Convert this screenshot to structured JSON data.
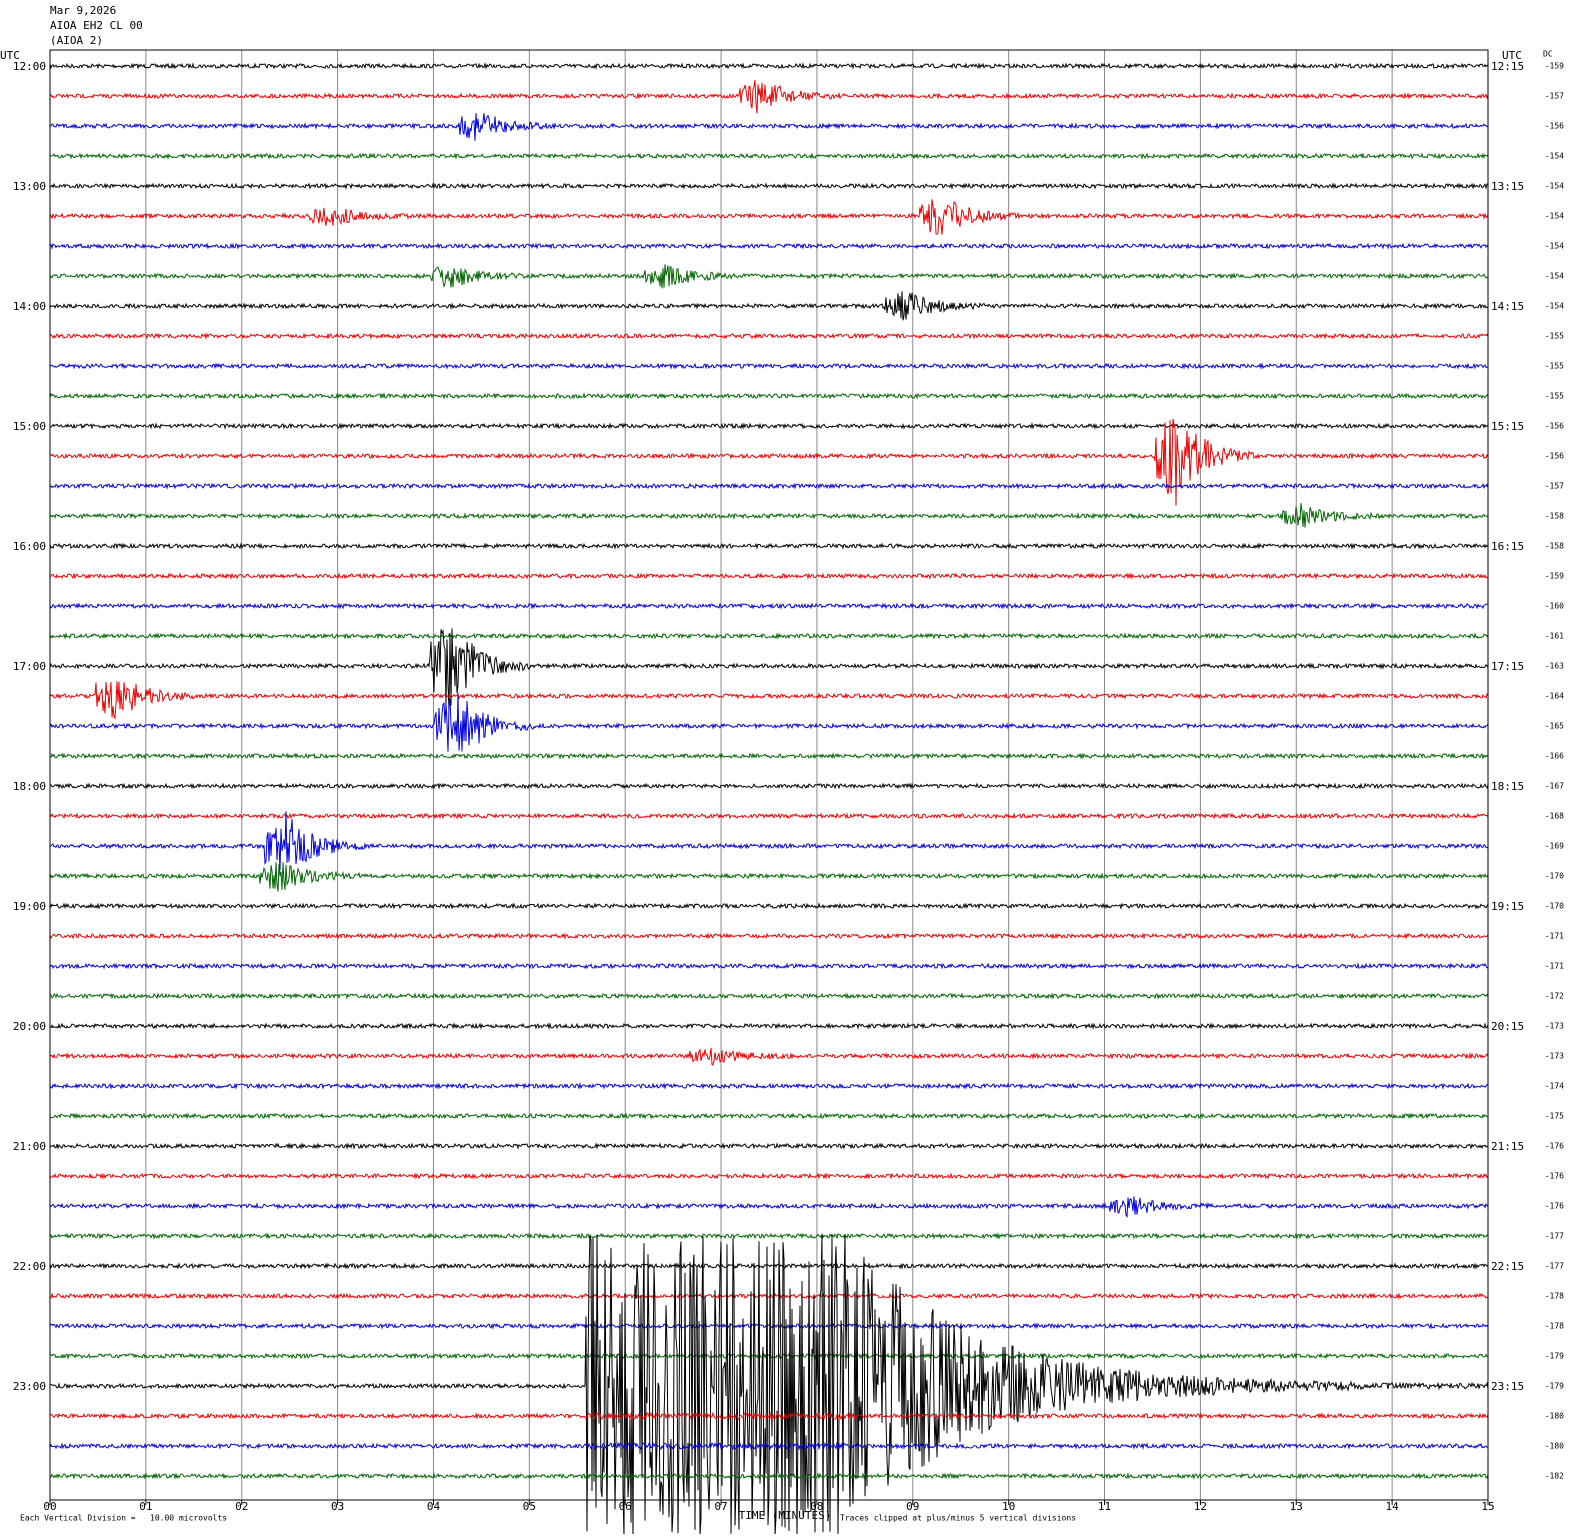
{
  "header": {
    "date": "Mar 9,2026",
    "station": "AIOA EH2 CL 00",
    "network": "(AIOA 2)"
  },
  "left_axis": {
    "label": "UTC",
    "times": [
      "12:00",
      "13:00",
      "14:00",
      "15:00",
      "16:00",
      "17:00",
      "18:00",
      "19:00",
      "20:00",
      "21:00",
      "22:00",
      "23:00"
    ]
  },
  "right_axis": {
    "label": "UTC",
    "times": [
      "12:15",
      "13:15",
      "14:15",
      "15:15",
      "16:15",
      "17:15",
      "18:15",
      "19:15",
      "20:15",
      "21:15",
      "22:15",
      "23:15"
    ]
  },
  "dc": {
    "label": "DC",
    "values": [
      "-159",
      "-157",
      "-156",
      "-154",
      "-154",
      "-154",
      "-154",
      "-154",
      "-154",
      "-155",
      "-155",
      "-155",
      "-156",
      "-156",
      "-157",
      "-158",
      "-158",
      "-159",
      "-160",
      "-161",
      "-163",
      "-164",
      "-165",
      "-166",
      "-167",
      "-168",
      "-169",
      "-170",
      "-170",
      "-171",
      "-171",
      "-172",
      "-173",
      "-173",
      "-174",
      "-175",
      "-176",
      "-176",
      "-176",
      "-177",
      "-177",
      "-178",
      "-178",
      "-179",
      "-179",
      "-180",
      "-180",
      "-182"
    ]
  },
  "x_axis": {
    "labels": [
      "00",
      "01",
      "02",
      "03",
      "04",
      "05",
      "06",
      "07",
      "08",
      "09",
      "10",
      "11",
      "12",
      "13",
      "14",
      "15"
    ],
    "title": "TIME (MINUTES)"
  },
  "footer": {
    "division": "Each Vertical Division =   10.00 microvolts",
    "clip": "Traces clipped at plus/minus 5 vertical divisions"
  }
}
